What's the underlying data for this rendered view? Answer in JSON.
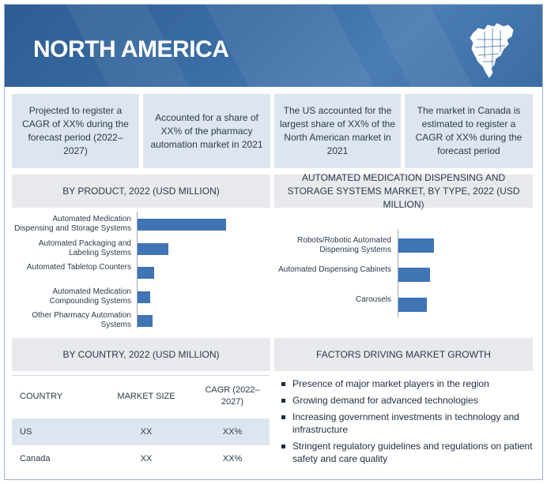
{
  "banner": {
    "title": "NORTH AMERICA",
    "map_icon": "north-america-map-icon"
  },
  "highlights": [
    "Projected to register a CAGR of XX% during the forecast period (2022–2027)",
    "Accounted for a share of XX% of the pharmacy automation market in 2021",
    "The US accounted for the largest share of XX% of the North American market in 2021",
    "The market in Canada is estimated to register a CAGR of XX% during the forecast period"
  ],
  "product_section": {
    "title": "BY PRODUCT, 2022 (USD MILLION)"
  },
  "type_section": {
    "title": "AUTOMATED MEDICATION DISPENSING AND STORAGE SYSTEMS MARKET, BY TYPE, 2022 (USD MILLION)"
  },
  "country_section": {
    "title": "BY COUNTRY, 2022 (USD MILLION)"
  },
  "factors_section": {
    "title": "FACTORS DRIVING MARKET GROWTH"
  },
  "chart_data": [
    {
      "type": "bar",
      "orientation": "horizontal",
      "title": "BY PRODUCT, 2022 (USD MILLION)",
      "categories": [
        "Automated Medication Dispensing and Storage Systems",
        "Automated Packaging and Labeling Systems",
        "Automated Tabletop Counters",
        "Automated Medication Compounding Systems",
        "Other Pharmacy Automation Systems"
      ],
      "values": [
        100,
        35,
        19,
        14,
        17
      ],
      "grid": false
    },
    {
      "type": "bar",
      "orientation": "horizontal",
      "title": "AUTOMATED MEDICATION DISPENSING AND STORAGE SYSTEMS MARKET, BY TYPE, 2022 (USD MILLION)",
      "categories": [
        "Robots/Robotic Automated Dispensing Systems",
        "Automated Dispensing Cabinets",
        "Carousels"
      ],
      "values": [
        100,
        88,
        80
      ],
      "grid": false
    }
  ],
  "table": {
    "headers": [
      "COUNTRY",
      "MARKET SIZE",
      "CAGR (2022–2027)"
    ],
    "rows": [
      [
        "US",
        "XX",
        "XX%"
      ],
      [
        "Canada",
        "XX",
        "XX%"
      ]
    ],
    "row_colors": [
      "#dde6f0",
      "#ffffff"
    ]
  },
  "factors": [
    "Presence of major market players in the region",
    "Growing demand for advanced technologies",
    "Increasing government investments in technology and infrastructure",
    "Stringent regulatory guidelines and regulations on patient safety and care quality"
  ]
}
